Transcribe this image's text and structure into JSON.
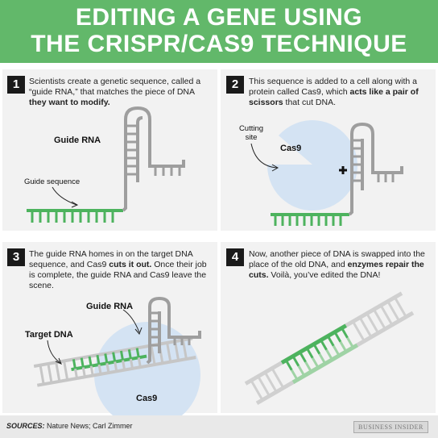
{
  "title": {
    "line1": "EDITING A GENE USING",
    "line2": "THE CRISPR/CAS9 TECHNIQUE"
  },
  "colors": {
    "header_bg": "#62b86a",
    "rna_green": "#4db35e",
    "rna_gray": "#9e9e9e",
    "cas9_blue": "#d4e3f3",
    "panel_bg": "#f2f2f2"
  },
  "steps": [
    {
      "number": "1",
      "text_a": "Scientists create a genetic sequence, called a “guide RNA,” that matches the piece of DNA ",
      "text_bold": "they want to modify.",
      "text_b": "",
      "labels": {
        "guide_rna": "Guide RNA",
        "guide_sequence": "Guide sequence"
      }
    },
    {
      "number": "2",
      "text_a": "This sequence is added to a cell along with a protein called Cas9, which ",
      "text_bold": "acts like a pair of scissors",
      "text_b": " that cut DNA.",
      "labels": {
        "cutting_site": "Cutting site",
        "cas9": "Cas9",
        "plus": "+"
      }
    },
    {
      "number": "3",
      "text_a": "The guide RNA homes in on the target DNA sequence, and Cas9 ",
      "text_bold": "cuts it out.",
      "text_b": " Once their job is complete, the guide RNA and Cas9 leave the scene.",
      "labels": {
        "guide_rna": "Guide RNA",
        "target_dna": "Target DNA",
        "cas9": "Cas9"
      }
    },
    {
      "number": "4",
      "text_a": "Now, another piece of DNA is swapped into the place of the old DNA, and ",
      "text_bold": "enzymes repair the cuts.",
      "text_b": " Voilà, you’ve edited the DNA!",
      "labels": {}
    }
  ],
  "footer": {
    "sources_label": "SOURCES:",
    "sources_text": " Nature News; Carl Zimmer",
    "brand": "BUSINESS INSIDER"
  }
}
